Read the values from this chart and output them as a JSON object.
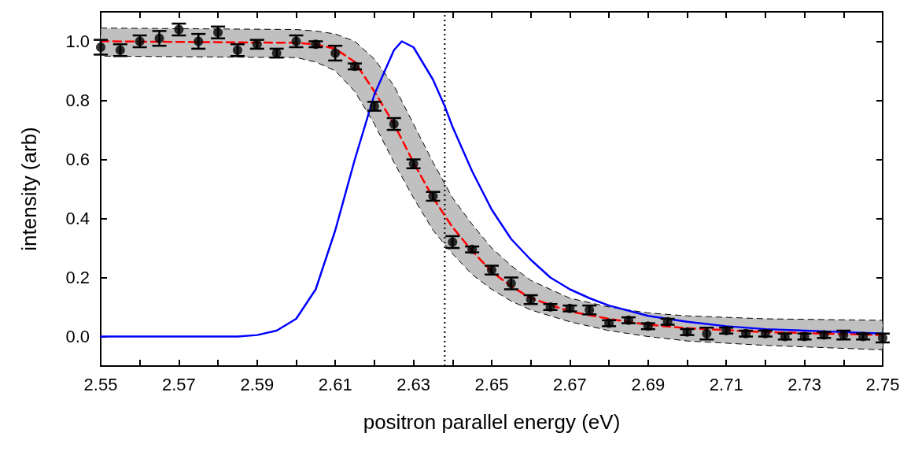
{
  "chart_data": {
    "type": "scatter",
    "xlabel": "positron parallel energy (eV)",
    "ylabel": "intensity (arb)",
    "xlim": [
      2.55,
      2.75
    ],
    "xticks": [
      2.55,
      {
        "value": 2.56,
        "label": null
      },
      2.57,
      {
        "value": 2.58,
        "label": null
      },
      2.59,
      {
        "value": 2.6,
        "label": null
      },
      2.61,
      {
        "value": 2.62,
        "label": null
      },
      2.63,
      {
        "value": 2.64,
        "label": null
      },
      2.65,
      {
        "value": 2.66,
        "label": null
      },
      2.67,
      {
        "value": 2.68,
        "label": null
      },
      2.69,
      {
        "value": 2.7,
        "label": null
      },
      2.71,
      {
        "value": 2.72,
        "label": null
      },
      2.73,
      {
        "value": 2.74,
        "label": null
      },
      2.75
    ],
    "ylim": [
      -0.1,
      1.1
    ],
    "yticks": [
      {
        "value": 0,
        "label": "0.0"
      },
      {
        "value": 0.2,
        "label": "0.2"
      },
      {
        "value": 0.4,
        "label": "0.4"
      },
      {
        "value": 0.6,
        "label": "0.6"
      },
      {
        "value": 0.8,
        "label": "0.8"
      },
      {
        "value": 1,
        "label": "1.0"
      }
    ],
    "grid": false,
    "ref_lines": [
      {
        "axis": "x",
        "value": 2.638,
        "label": null,
        "line_style": "dotted",
        "color": "#000000"
      }
    ],
    "series": [
      {
        "color": "#000000",
        "marker": "circle",
        "x": [
          2.55,
          2.555,
          2.56,
          2.565,
          2.57,
          2.575,
          2.58,
          2.585,
          2.59,
          2.595,
          2.6,
          2.605,
          2.61,
          2.615,
          2.62,
          2.625,
          2.63,
          2.635,
          2.64,
          2.645,
          2.65,
          2.655,
          2.66,
          2.665,
          2.67,
          2.675,
          2.68,
          2.685,
          2.69,
          2.695,
          2.7,
          2.705,
          2.71,
          2.715,
          2.72,
          2.725,
          2.73,
          2.735,
          2.74,
          2.745,
          2.75
        ],
        "values": [
          0.98,
          0.97,
          1.0,
          1.01,
          1.04,
          1.0,
          1.03,
          0.97,
          0.99,
          0.96,
          1.0,
          0.99,
          0.96,
          0.915,
          0.78,
          0.72,
          0.585,
          0.475,
          0.32,
          0.295,
          0.225,
          0.18,
          0.125,
          0.1,
          0.095,
          0.09,
          0.045,
          0.055,
          0.035,
          0.05,
          0.015,
          0.01,
          0.02,
          0.01,
          0.01,
          0.0,
          0.0,
          0.005,
          0.005,
          0.0,
          -0.005
        ],
        "errors": [
          0.025,
          0.02,
          0.02,
          0.025,
          0.02,
          0.025,
          0.02,
          0.02,
          0.015,
          0.015,
          0.02,
          0.01,
          0.025,
          0.01,
          0.015,
          0.02,
          0.015,
          0.015,
          0.02,
          0.01,
          0.015,
          0.02,
          0.015,
          0.01,
          0.01,
          0.015,
          0.01,
          0.01,
          0.01,
          0.01,
          0.01,
          0.02,
          0.01,
          0.01,
          0.01,
          0.01,
          0.01,
          0.01,
          0.015,
          0.01,
          0.015
        ]
      },
      {
        "type": "line",
        "color": "#ff0000",
        "line_style": "dashed",
        "marker": "none",
        "x": [
          2.55,
          2.6,
          2.605,
          2.61,
          2.615,
          2.62,
          2.625,
          2.63,
          2.635,
          2.64,
          2.645,
          2.65,
          2.655,
          2.66,
          2.67,
          2.68,
          2.69,
          2.7,
          2.72,
          2.75
        ],
        "values": [
          1.0,
          0.995,
          0.99,
          0.975,
          0.93,
          0.83,
          0.72,
          0.59,
          0.47,
          0.37,
          0.29,
          0.22,
          0.17,
          0.13,
          0.085,
          0.06,
          0.04,
          0.028,
          0.015,
          0.005
        ],
        "upper": [
          1.045,
          1.04,
          1.035,
          1.025,
          1.0,
          0.94,
          0.85,
          0.72,
          0.59,
          0.47,
          0.38,
          0.3,
          0.24,
          0.19,
          0.13,
          0.1,
          0.08,
          0.07,
          0.06,
          0.055
        ],
        "lower": [
          0.95,
          0.945,
          0.93,
          0.9,
          0.83,
          0.72,
          0.59,
          0.47,
          0.36,
          0.28,
          0.21,
          0.16,
          0.12,
          0.09,
          0.05,
          0.02,
          0.0,
          -0.015,
          -0.03,
          -0.045
        ]
      },
      {
        "type": "line",
        "color": "#0000ff",
        "line_style": "solid",
        "marker": "none",
        "x": [
          2.55,
          2.585,
          2.59,
          2.595,
          2.6,
          2.605,
          2.61,
          2.615,
          2.62,
          2.625,
          2.627,
          2.63,
          2.635,
          2.638,
          2.64,
          2.645,
          2.65,
          2.655,
          2.66,
          2.665,
          2.67,
          2.675,
          2.68,
          2.69,
          2.7,
          2.71,
          2.72,
          2.73,
          2.74,
          2.75
        ],
        "values": [
          0.0,
          0.0,
          0.005,
          0.02,
          0.06,
          0.16,
          0.36,
          0.6,
          0.82,
          0.97,
          1.0,
          0.98,
          0.87,
          0.78,
          0.71,
          0.56,
          0.43,
          0.33,
          0.26,
          0.2,
          0.16,
          0.13,
          0.105,
          0.07,
          0.05,
          0.035,
          0.025,
          0.02,
          0.015,
          0.01
        ]
      }
    ]
  }
}
